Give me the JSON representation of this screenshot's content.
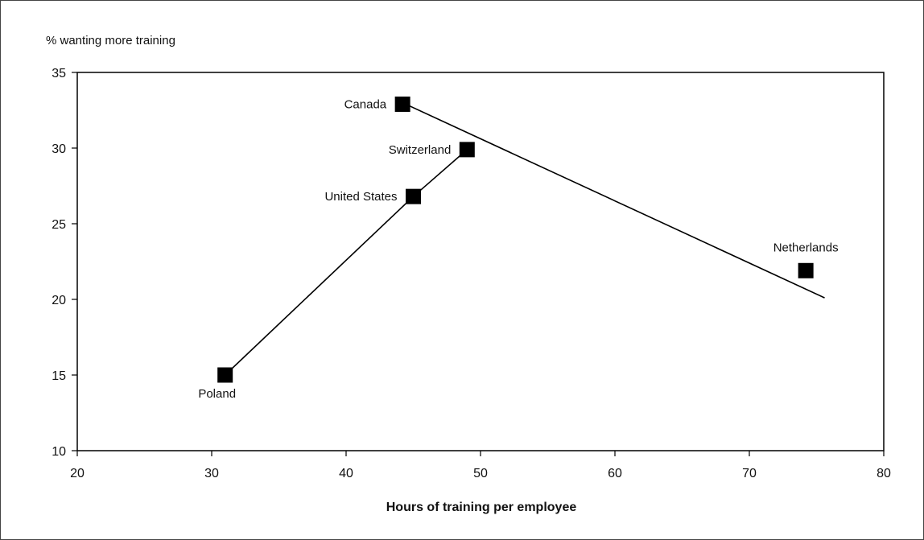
{
  "chart_data": {
    "type": "scatter",
    "ylabel": "% wanting more training",
    "xlabel": "Hours of training per employee",
    "xlim": [
      20,
      80
    ],
    "ylim": [
      10,
      35
    ],
    "x_ticks": [
      20,
      30,
      40,
      50,
      60,
      70,
      80
    ],
    "y_ticks": [
      10,
      15,
      20,
      25,
      30,
      35
    ],
    "x_tick_labels": [
      "20",
      "30",
      "40",
      "50",
      "60",
      "70",
      "80"
    ],
    "y_tick_labels": [
      "10",
      "15",
      "20",
      "25",
      "30",
      "35"
    ],
    "grid": false,
    "points": [
      {
        "label": "Poland",
        "x": 31,
        "y": 15,
        "label_pos": "below"
      },
      {
        "label": "United States",
        "x": 45,
        "y": 26.8,
        "label_pos": "left"
      },
      {
        "label": "Switzerland",
        "x": 49,
        "y": 29.9,
        "label_pos": "left"
      },
      {
        "label": "Canada",
        "x": 44.2,
        "y": 32.9,
        "label_pos": "left"
      },
      {
        "label": "Netherlands",
        "x": 74.2,
        "y": 21.9,
        "label_pos": "above"
      }
    ],
    "lines": [
      {
        "points": [
          [
            31,
            15
          ],
          [
            45,
            26.8
          ],
          [
            49,
            29.9
          ]
        ]
      },
      {
        "points": [
          [
            44.2,
            33
          ],
          [
            75.6,
            20.1
          ]
        ]
      }
    ],
    "colors": {
      "marker": "#000000",
      "line": "#000000",
      "axis": "#000000"
    }
  }
}
